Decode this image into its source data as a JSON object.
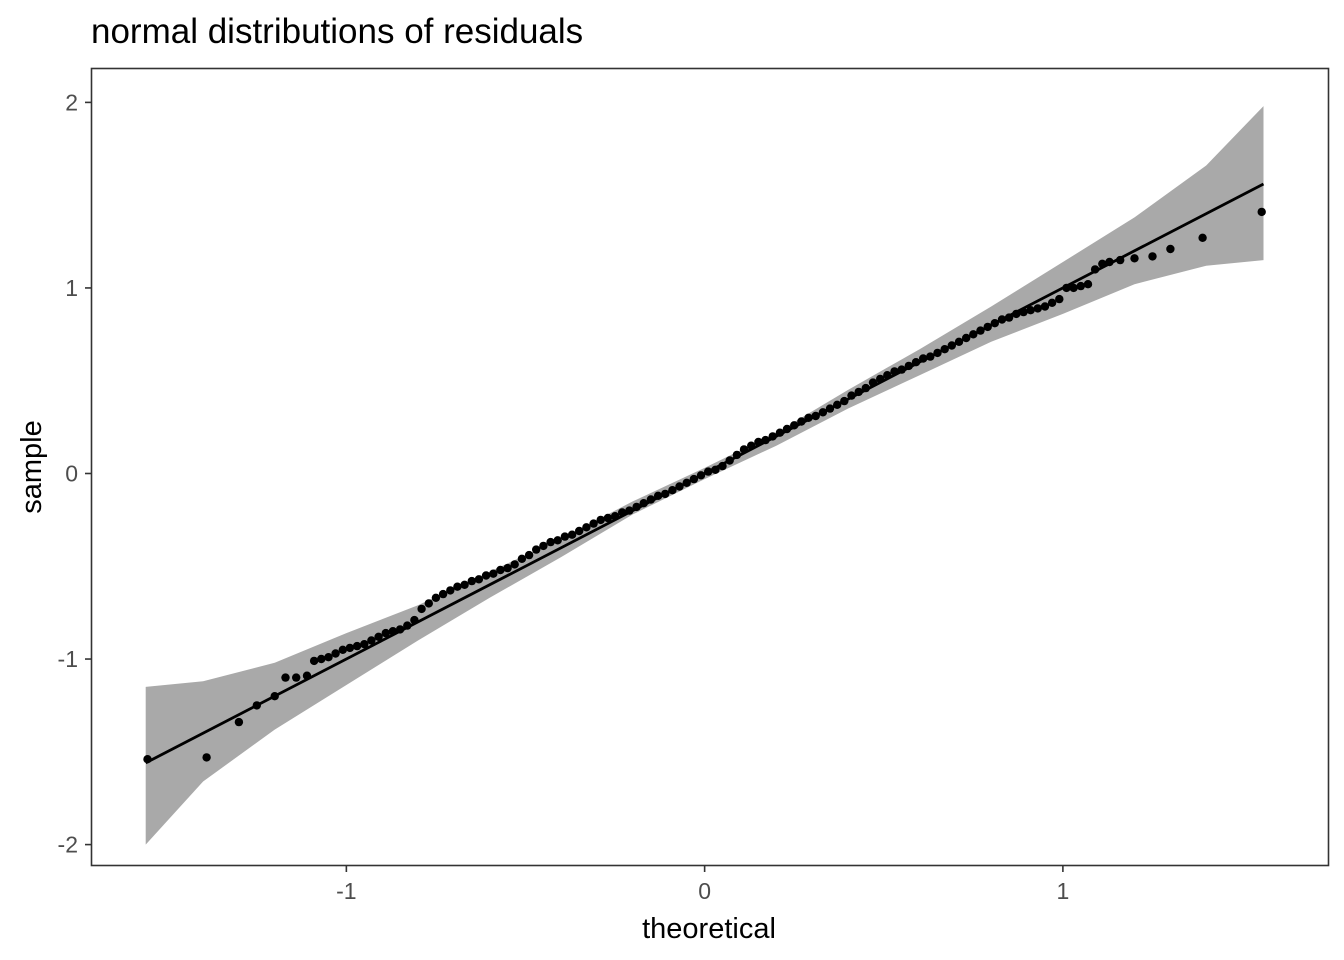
{
  "chart_data": {
    "type": "scatter",
    "title": "normal distributions of residuals",
    "xlabel": "theoretical",
    "ylabel": "sample",
    "xlim": [
      -1.71,
      1.74
    ],
    "ylim": [
      -2.11,
      2.18
    ],
    "x_ticks": [
      -1,
      0,
      1
    ],
    "x_tick_labels": [
      "-1",
      "0",
      "1"
    ],
    "y_ticks": [
      -2,
      -1,
      0,
      1,
      2
    ],
    "y_tick_labels": [
      "-2",
      "-1",
      "0",
      "1",
      "2"
    ],
    "grid": false,
    "legend": "none",
    "colors": {
      "points": "#000000",
      "line": "#000000",
      "band": "#a9a9a9",
      "panel_border": "#333333",
      "tick_label": "#4d4d4d"
    },
    "reference_line": {
      "x": [
        -1.56,
        1.56
      ],
      "y": [
        -1.56,
        1.56
      ]
    },
    "confidence_band": {
      "x": [
        -1.56,
        -1.4,
        -1.2,
        -1.0,
        -0.8,
        -0.6,
        -0.4,
        -0.2,
        0.0,
        0.2,
        0.4,
        0.6,
        0.8,
        1.0,
        1.2,
        1.4,
        1.56
      ],
      "lower": [
        -2.0,
        -1.66,
        -1.38,
        -1.14,
        -0.9,
        -0.67,
        -0.45,
        -0.22,
        -0.03,
        0.15,
        0.35,
        0.53,
        0.71,
        0.86,
        1.02,
        1.12,
        1.15
      ],
      "upper": [
        -1.15,
        -1.12,
        -1.02,
        -0.86,
        -0.71,
        -0.53,
        -0.35,
        -0.15,
        0.03,
        0.22,
        0.45,
        0.67,
        0.9,
        1.14,
        1.38,
        1.66,
        1.98
      ]
    },
    "series": [
      {
        "x": [
          -1.555,
          -1.39,
          -1.3,
          -1.25,
          -1.2,
          -1.17,
          -1.14,
          -1.11,
          -1.09,
          -1.07,
          -1.05,
          -1.03,
          -1.01,
          -0.99,
          -0.97,
          -0.95,
          -0.93,
          -0.91,
          -0.89,
          -0.87,
          -0.85,
          -0.83,
          -0.81,
          -0.79,
          -0.77,
          -0.75,
          -0.73,
          -0.71,
          -0.69,
          -0.67,
          -0.65,
          -0.63,
          -0.61,
          -0.59,
          -0.57,
          -0.55,
          -0.53,
          -0.51,
          -0.49,
          -0.47,
          -0.45,
          -0.43,
          -0.41,
          -0.39,
          -0.37,
          -0.35,
          -0.33,
          -0.31,
          -0.29,
          -0.27,
          -0.25,
          -0.23,
          -0.21,
          -0.19,
          -0.17,
          -0.15,
          -0.13,
          -0.11,
          -0.09,
          -0.07,
          -0.05,
          -0.03,
          -0.01,
          0.01,
          0.03,
          0.05,
          0.07,
          0.09,
          0.11,
          0.13,
          0.15,
          0.17,
          0.19,
          0.21,
          0.23,
          0.25,
          0.27,
          0.29,
          0.31,
          0.33,
          0.35,
          0.37,
          0.39,
          0.41,
          0.43,
          0.45,
          0.47,
          0.49,
          0.51,
          0.53,
          0.55,
          0.57,
          0.59,
          0.61,
          0.63,
          0.65,
          0.67,
          0.69,
          0.71,
          0.73,
          0.75,
          0.77,
          0.79,
          0.81,
          0.83,
          0.85,
          0.87,
          0.89,
          0.91,
          0.93,
          0.95,
          0.97,
          0.99,
          1.01,
          1.03,
          1.05,
          1.07,
          1.09,
          1.11,
          1.13,
          1.16,
          1.2,
          1.25,
          1.3,
          1.39,
          1.555
        ],
        "y": [
          -1.54,
          -1.53,
          -1.34,
          -1.25,
          -1.2,
          -1.1,
          -1.1,
          -1.09,
          -1.01,
          -1.0,
          -0.99,
          -0.97,
          -0.95,
          -0.94,
          -0.93,
          -0.92,
          -0.9,
          -0.88,
          -0.86,
          -0.85,
          -0.84,
          -0.82,
          -0.79,
          -0.73,
          -0.7,
          -0.67,
          -0.65,
          -0.63,
          -0.61,
          -0.6,
          -0.58,
          -0.57,
          -0.55,
          -0.54,
          -0.52,
          -0.51,
          -0.49,
          -0.46,
          -0.44,
          -0.41,
          -0.39,
          -0.37,
          -0.36,
          -0.34,
          -0.33,
          -0.31,
          -0.29,
          -0.27,
          -0.25,
          -0.24,
          -0.23,
          -0.21,
          -0.2,
          -0.18,
          -0.16,
          -0.14,
          -0.12,
          -0.11,
          -0.09,
          -0.07,
          -0.05,
          -0.03,
          -0.01,
          0.01,
          0.02,
          0.04,
          0.07,
          0.1,
          0.13,
          0.15,
          0.17,
          0.18,
          0.2,
          0.22,
          0.24,
          0.26,
          0.28,
          0.3,
          0.31,
          0.33,
          0.35,
          0.37,
          0.39,
          0.42,
          0.44,
          0.46,
          0.49,
          0.51,
          0.53,
          0.55,
          0.56,
          0.58,
          0.6,
          0.62,
          0.63,
          0.65,
          0.67,
          0.69,
          0.71,
          0.73,
          0.75,
          0.77,
          0.79,
          0.81,
          0.83,
          0.84,
          0.86,
          0.87,
          0.88,
          0.89,
          0.9,
          0.92,
          0.94,
          1.0,
          1.0,
          1.01,
          1.02,
          1.1,
          1.13,
          1.14,
          1.15,
          1.16,
          1.17,
          1.21,
          1.27,
          1.41
        ]
      }
    ]
  }
}
